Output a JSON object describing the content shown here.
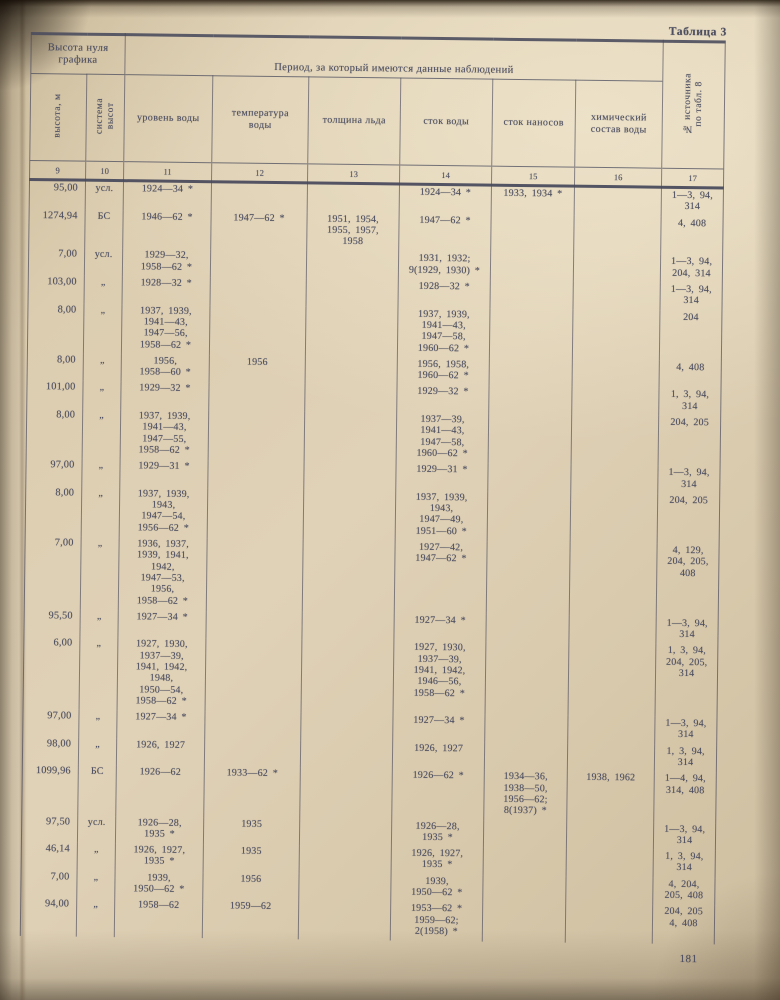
{
  "page": {
    "table_label": "Таблица 3",
    "page_number": "181"
  },
  "table": {
    "group_headers": {
      "height_zero": "Высота нуля\nграфика",
      "period": "Период, за который имеются данные наблюдений"
    },
    "columns": [
      {
        "label": "высота, м",
        "number": "9"
      },
      {
        "label": "система\nвысот",
        "number": "10"
      },
      {
        "label": "уровень воды",
        "number": "11"
      },
      {
        "label": "температура\nводы",
        "number": "12"
      },
      {
        "label": "толщина льда",
        "number": "13"
      },
      {
        "label": "сток воды",
        "number": "14"
      },
      {
        "label": "сток наносов",
        "number": "15"
      },
      {
        "label": "химический\nсостав воды",
        "number": "16"
      },
      {
        "label": "№ источника\nпо табл. 8",
        "number": "17"
      }
    ],
    "rows": [
      [
        "95,00",
        "усл.",
        "1924—34 *",
        "",
        "",
        "1924—34 *",
        "1933, 1934 *",
        "",
        "1—3, 94,\n314"
      ],
      [
        "1274,94",
        "БС",
        "1946—62 *",
        "1947—62 *",
        "1951, 1954,\n1955, 1957,\n1958",
        "1947—62 *",
        "",
        "",
        "4, 408"
      ],
      [
        "7,00",
        "усл.",
        "1929—32,\n1958—62 *",
        "",
        "",
        "1931, 1932;\n9(1929, 1930) *",
        "",
        "",
        "1—3, 94,\n204, 314"
      ],
      [
        "103,00",
        "„",
        "1928—32 *",
        "",
        "",
        "1928—32 *",
        "",
        "",
        "1—3, 94,\n314"
      ],
      [
        "8,00",
        "„",
        "1937, 1939,\n1941—43,\n1947—56,\n1958—62 *",
        "",
        "",
        "1937, 1939,\n1941—43,\n1947—58,\n1960—62 *",
        "",
        "",
        "204"
      ],
      [
        "8,00",
        "„",
        "1956,\n1958—60 *",
        "1956",
        "",
        "1956, 1958,\n1960—62 *",
        "",
        "",
        "4, 408"
      ],
      [
        "101,00",
        "„",
        "1929—32 *",
        "",
        "",
        "1929—32 *",
        "",
        "",
        "1, 3, 94,\n314"
      ],
      [
        "8,00",
        "„",
        "1937, 1939,\n1941—43,\n1947—55,\n1958—62 *",
        "",
        "",
        "1937—39,\n1941—43,\n1947—58,\n1960—62 *",
        "",
        "",
        "204, 205"
      ],
      [
        "97,00",
        "„",
        "1929—31 *",
        "",
        "",
        "1929—31 *",
        "",
        "",
        "1—3, 94,\n314"
      ],
      [
        "8,00",
        "„",
        "1937, 1939,\n1943,\n1947—54,\n1956—62 *",
        "",
        "",
        "1937, 1939,\n1943,\n1947—49,\n1951—60 *",
        "",
        "",
        "204, 205"
      ],
      [
        "7,00",
        "„",
        "1936, 1937,\n1939, 1941,\n1942,\n1947—53,\n1956,\n1958—62 *",
        "",
        "",
        "1927—42,\n1947—62 *",
        "",
        "",
        "4, 129,\n204, 205,\n408"
      ],
      [
        "95,50",
        "„",
        "1927—34 *",
        "",
        "",
        "1927—34 *",
        "",
        "",
        "1—3, 94,\n314"
      ],
      [
        "6,00",
        "„",
        "1927, 1930,\n1937—39,\n1941, 1942,\n1948,\n1950—54,\n1958—62 *",
        "",
        "",
        "1927, 1930,\n1937—39,\n1941, 1942,\n1946—56,\n1958—62 *",
        "",
        "",
        "1, 3, 94,\n204, 205,\n314"
      ],
      [
        "97,00",
        "„",
        "1927—34 *",
        "",
        "",
        "1927—34 *",
        "",
        "",
        "1—3, 94,\n314"
      ],
      [
        "98,00",
        "„",
        "1926, 1927",
        "",
        "",
        "1926, 1927",
        "",
        "",
        "1, 3, 94,\n314"
      ],
      [
        "1099,96",
        "БС",
        "1926—62",
        "1933—62 *",
        "",
        "1926—62 *",
        "1934—36,\n1938—50,\n1956—62;\n8(1937) *",
        "1938, 1962",
        "1—4, 94,\n314, 408"
      ],
      [
        "97,50",
        "усл.",
        "1926—28,\n1935 *",
        "1935",
        "",
        "1926—28,\n1935 *",
        "",
        "",
        "1—3, 94,\n314"
      ],
      [
        "46,14",
        "„",
        "1926, 1927,\n1935 *",
        "1935",
        "",
        "1926, 1927,\n1935 *",
        "",
        "",
        "1, 3, 94,\n314"
      ],
      [
        "7,00",
        "„",
        "1939,\n1950—62 *",
        "1956",
        "",
        "1939,\n1950—62 *",
        "",
        "",
        "4, 204,\n205, 408"
      ],
      [
        "94,00",
        "„",
        "1958—62",
        "1959—62",
        "",
        "1953—62 *\n1959—62;\n2(1958) *",
        "",
        "",
        "204, 205\n4, 408"
      ]
    ]
  }
}
